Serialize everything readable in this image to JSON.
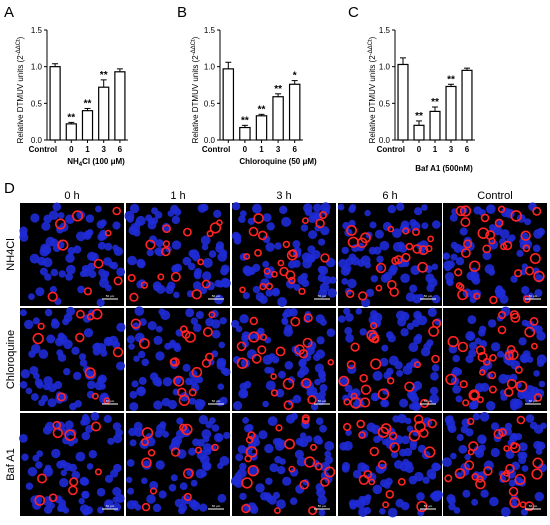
{
  "chart_data": [
    {
      "type": "bar",
      "panel": "A",
      "ylabel_main": "Relative DTMUV units (2",
      "ylabel_sup": "-ΔΔCt",
      "ylabel_close": ")",
      "xlabel_prefix": "NH",
      "xlabel_sub": "4",
      "xlabel_suffix": "Cl (100 μM)",
      "ylim": [
        0,
        1.5
      ],
      "yticks": [
        "0.0",
        "0.5",
        "1.0",
        "1.5"
      ],
      "categories": [
        "Control",
        "0",
        "1",
        "3",
        "6"
      ],
      "values": [
        1.0,
        0.22,
        0.4,
        0.72,
        0.93
      ],
      "errors": [
        0.04,
        0.02,
        0.03,
        0.1,
        0.04
      ],
      "significance": [
        "",
        "**",
        "**",
        "**",
        ""
      ]
    },
    {
      "type": "bar",
      "panel": "B",
      "ylabel_main": "Relative DTMUV units (2",
      "ylabel_sup": "-ΔΔCt",
      "ylabel_close": ")",
      "xlabel_prefix": "Chloroquine (50 μM)",
      "xlabel_sub": "",
      "xlabel_suffix": "",
      "ylim": [
        0,
        1.5
      ],
      "yticks": [
        "0.0",
        "0.5",
        "1.0",
        "1.5"
      ],
      "categories": [
        "Control",
        "0",
        "1",
        "3",
        "6"
      ],
      "values": [
        0.97,
        0.17,
        0.33,
        0.59,
        0.76
      ],
      "errors": [
        0.09,
        0.03,
        0.02,
        0.04,
        0.05
      ],
      "significance": [
        "",
        "**",
        "**",
        "**",
        "*"
      ]
    },
    {
      "type": "bar",
      "panel": "C",
      "ylabel_main": "Relative DTMUV units (2",
      "ylabel_sup": "-ΔΔCt",
      "ylabel_close": ")",
      "xlabel_prefix": "Baf A1 (500nM)",
      "xlabel_sub": "",
      "xlabel_suffix": "",
      "ylim": [
        0,
        1.5
      ],
      "yticks": [
        "0.0",
        "0.5",
        "1.0",
        "1.5"
      ],
      "categories": [
        "Control",
        "0",
        "1",
        "3",
        "6"
      ],
      "values": [
        1.03,
        0.2,
        0.39,
        0.73,
        0.95
      ],
      "errors": [
        0.09,
        0.06,
        0.06,
        0.03,
        0.03
      ],
      "significance": [
        "",
        "**",
        "**",
        "**",
        ""
      ]
    }
  ],
  "micrograph_panel": {
    "letter": "D",
    "columns": [
      "0 h",
      "1 h",
      "3 h",
      "6 h",
      "Control"
    ],
    "rows": [
      "NH4Cl",
      "Chloroquine",
      "Baf A1"
    ],
    "scalebar_label": "50 μm",
    "nuclei_color": "#1f2bd6",
    "signal_color": "#ff2424",
    "background_color": "#000000",
    "red_cells_per_image": [
      [
        9,
        16,
        22,
        22,
        30
      ],
      [
        11,
        16,
        20,
        22,
        30
      ],
      [
        10,
        13,
        20,
        22,
        26
      ]
    ]
  }
}
